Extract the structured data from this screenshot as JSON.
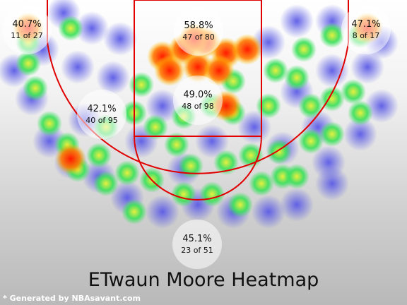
{
  "title": "ETwaun Moore Heatmap",
  "credit": "* Generated by NBAsavant.com",
  "colors": {
    "court_line": "#e00000",
    "heat_low": "#6f6fe8",
    "heat_mid": "#40e060",
    "heat_high": "#f0f030",
    "heat_max": "#ff3000"
  },
  "zones": [
    {
      "id": "left-corner",
      "pct": "40.7%",
      "count": "11 of 27"
    },
    {
      "id": "paint",
      "pct": "58.8%",
      "count": "47 of 80"
    },
    {
      "id": "right-corner",
      "pct": "47.1%",
      "count": "8 of 17"
    },
    {
      "id": "mid-left",
      "pct": "42.1%",
      "count": "40 of 95"
    },
    {
      "id": "mid-center",
      "pct": "49.0%",
      "count": "48 of 98"
    },
    {
      "id": "top-three",
      "pct": "45.1%",
      "count": "23 of 51"
    }
  ]
}
